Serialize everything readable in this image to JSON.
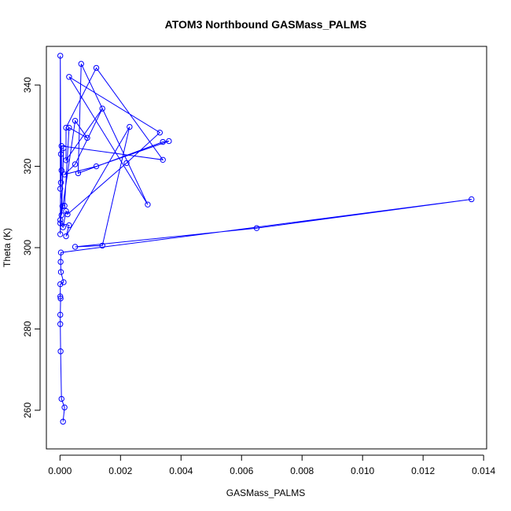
{
  "chart_data": {
    "type": "scatter",
    "title": "ATOM3 Northbound GASMass_PALMS",
    "xlabel": "GASMass_PALMS",
    "ylabel": "Theta (K)",
    "xlim": [
      -0.00045,
      0.0141
    ],
    "ylim": [
      250.5,
      349.5
    ],
    "xticks": [
      "0.000",
      "0.002",
      "0.004",
      "0.006",
      "0.008",
      "0.010",
      "0.012",
      "0.014"
    ],
    "xtick_values": [
      0,
      0.002,
      0.004,
      0.006,
      0.008,
      0.01,
      0.012,
      0.014
    ],
    "yticks": [
      "260",
      "280",
      "300",
      "320",
      "340"
    ],
    "ytick_values": [
      260,
      280,
      300,
      320,
      340
    ],
    "grid": false,
    "legend": "none",
    "marker": "open-circle",
    "connected": true,
    "color": "#0000ff",
    "points": [
      [
        0.0001,
        257.2
      ],
      [
        0.00015,
        260.7
      ],
      [
        5e-05,
        262.8
      ],
      [
        2e-05,
        274.5
      ],
      [
        1e-05,
        281.2
      ],
      [
        1e-05,
        283.5
      ],
      [
        2e-05,
        287.5
      ],
      [
        1e-05,
        288.0
      ],
      [
        1e-05,
        291.0
      ],
      [
        0.00012,
        291.5
      ],
      [
        3e-05,
        294.0
      ],
      [
        2e-05,
        296.5
      ],
      [
        3e-05,
        298.8
      ],
      [
        0.0136,
        311.9
      ],
      [
        0.0065,
        304.8
      ],
      [
        0.0005,
        300.2
      ],
      [
        0.0014,
        300.5
      ],
      [
        0.0023,
        329.7
      ],
      [
        0.0002,
        302.8
      ],
      [
        0.0003,
        305.5
      ],
      [
        1e-05,
        306.0
      ],
      [
        0.0001,
        305.0
      ],
      [
        0.0002,
        309.0
      ],
      [
        0.00025,
        308.2
      ],
      [
        0.0022,
        320.8
      ],
      [
        0.0033,
        328.3
      ],
      [
        0.0003,
        342.0
      ],
      [
        0.0029,
        310.6
      ],
      [
        0.0007,
        345.2
      ],
      [
        0.0006,
        318.3
      ],
      [
        0.0034,
        326.0
      ],
      [
        0.0036,
        326.2
      ],
      [
        0.0012,
        320.0
      ],
      [
        0.00015,
        318.0
      ],
      [
        0.0005,
        320.5
      ],
      [
        0.0014,
        334.2
      ],
      [
        0.0002,
        321.5
      ],
      [
        0.0002,
        329.5
      ],
      [
        0.0012,
        344.2
      ],
      [
        0.0034,
        321.6
      ],
      [
        5e-05,
        325.0
      ],
      [
        5e-05,
        319.0
      ],
      [
        3e-05,
        316.0
      ],
      [
        1e-05,
        347.2
      ],
      [
        1e-05,
        314.5
      ],
      [
        8e-05,
        310.2
      ],
      [
        0.00015,
        310.3
      ],
      [
        0.0003,
        329.5
      ],
      [
        0.0009,
        327.0
      ],
      [
        0.0005,
        331.2
      ],
      [
        5e-05,
        308.0
      ],
      [
        0.00012,
        324.5
      ],
      [
        1e-05,
        303.3
      ],
      [
        1e-05,
        306.8
      ],
      [
        3e-05,
        323.0
      ]
    ]
  }
}
